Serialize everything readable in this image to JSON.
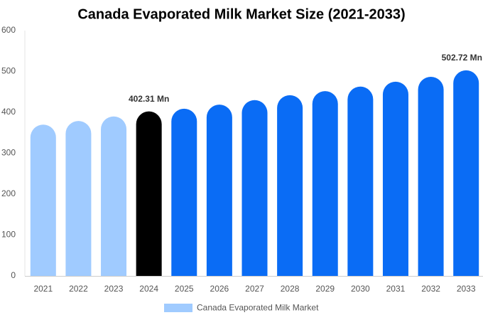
{
  "chart_data": {
    "type": "bar",
    "title": "Canada Evaporated Milk Market Size (2021-2033)",
    "categories": [
      "2021",
      "2022",
      "2023",
      "2024",
      "2025",
      "2026",
      "2027",
      "2028",
      "2029",
      "2030",
      "2031",
      "2032",
      "2033"
    ],
    "series": [
      {
        "name": "Canada Evaporated Milk Market",
        "color": "#a0cbff",
        "values": [
          370,
          379,
          390,
          402.31,
          409,
          419,
          430,
          442,
          452,
          463,
          475,
          487,
          502.72
        ],
        "colors": [
          "#a0cbff",
          "#a0cbff",
          "#a0cbff",
          "#000000",
          "#0a6cf5",
          "#0a6cf5",
          "#0a6cf5",
          "#0a6cf5",
          "#0a6cf5",
          "#0a6cf5",
          "#0a6cf5",
          "#0a6cf5",
          "#0a6cf5"
        ],
        "value_labels": [
          null,
          null,
          null,
          "402.31 Mn",
          null,
          null,
          null,
          null,
          null,
          null,
          null,
          null,
          "502.72 Mn"
        ]
      }
    ],
    "ylim": [
      0,
      600
    ],
    "yticks": [
      0,
      100,
      200,
      300,
      400,
      500,
      600
    ],
    "grid": false
  }
}
